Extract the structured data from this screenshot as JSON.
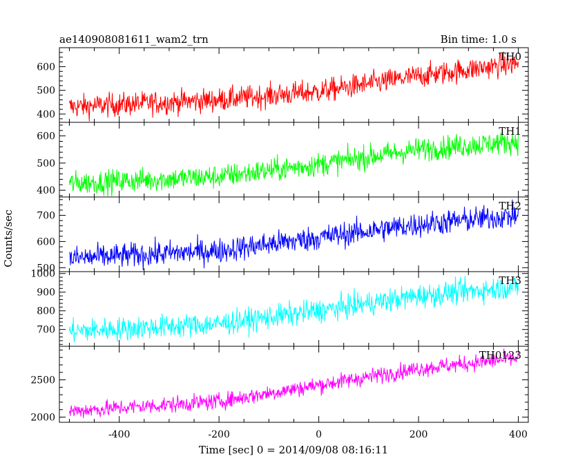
{
  "figure": {
    "title_left": "ae140908081611_wam2_trn",
    "title_right": "Bin time: 1.0 s",
    "ylabel": "Counts/sec",
    "xlabel": "Time [sec] 0 = 2014/09/08 08:16:11"
  },
  "chart_data": {
    "type": "line",
    "x_axis": {
      "range": [
        -520,
        420
      ],
      "ticks": [
        -400,
        -200,
        0,
        200,
        400
      ],
      "tick_labels": [
        "-400",
        "-200",
        "0",
        "200",
        "400"
      ],
      "label": "Time [sec] 0 = 2014/09/08 08:16:11"
    },
    "x_sampling": {
      "start": -500,
      "end": 400,
      "step": 1
    },
    "shared_ylabel": "Counts/sec",
    "panels": [
      {
        "name": "TH0",
        "color": "#ff0000",
        "ylim": [
          365,
          680
        ],
        "yticks": [
          400,
          500,
          600
        ],
        "ytick_labels": [
          "400",
          "500",
          "600"
        ],
        "trend": [
          [
            -500,
            430
          ],
          [
            -200,
            460
          ],
          [
            0,
            495
          ],
          [
            200,
            560
          ],
          [
            400,
            615
          ]
        ],
        "noise": 25
      },
      {
        "name": "TH1",
        "color": "#00ff00",
        "ylim": [
          375,
          650
        ],
        "yticks": [
          400,
          500,
          600
        ],
        "ytick_labels": [
          "400",
          "500",
          "600"
        ],
        "trend": [
          [
            -500,
            425
          ],
          [
            -200,
            450
          ],
          [
            0,
            495
          ],
          [
            200,
            550
          ],
          [
            400,
            580
          ]
        ],
        "noise": 22
      },
      {
        "name": "TH2",
        "color": "#0000ff",
        "ylim": [
          485,
          770
        ],
        "yticks": [
          500,
          600,
          700
        ],
        "ytick_labels": [
          "500",
          "600",
          "700"
        ],
        "trend": [
          [
            -500,
            535
          ],
          [
            -200,
            565
          ],
          [
            0,
            615
          ],
          [
            200,
            665
          ],
          [
            400,
            700
          ]
        ],
        "noise": 24
      },
      {
        "name": "TH3",
        "color": "#00ffff",
        "ylim": [
          610,
          1010
        ],
        "yticks": [
          700,
          800,
          900,
          1000
        ],
        "ytick_labels": [
          "700",
          "800",
          "900",
          "1000"
        ],
        "trend": [
          [
            -500,
            690
          ],
          [
            -200,
            730
          ],
          [
            0,
            800
          ],
          [
            200,
            880
          ],
          [
            400,
            930
          ]
        ],
        "noise": 32
      },
      {
        "name": "TH0123",
        "color": "#ff00ff",
        "ylim": [
          1930,
          2950
        ],
        "yticks": [
          2000,
          2500
        ],
        "ytick_labels": [
          "2000",
          "2500"
        ],
        "trend": [
          [
            -500,
            2080
          ],
          [
            -200,
            2210
          ],
          [
            0,
            2430
          ],
          [
            200,
            2650
          ],
          [
            400,
            2790
          ]
        ],
        "noise": 55
      }
    ]
  }
}
